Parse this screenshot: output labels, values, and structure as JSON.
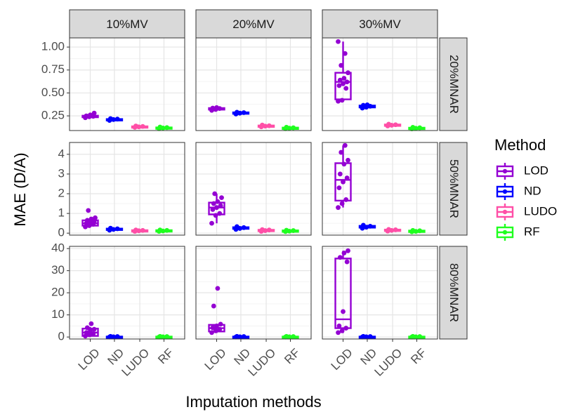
{
  "chart_data": {
    "type": "box",
    "xlabel": "Imputation methods",
    "ylabel": "MAE (D/A)",
    "categories": [
      "LOD",
      "ND",
      "LUDO",
      "RF"
    ],
    "col_facets": [
      "10%MV",
      "20%MV",
      "30%MV"
    ],
    "row_facets": [
      "20%MNAR",
      "50%MNAR",
      "80%MNAR"
    ],
    "legend": {
      "title": "Method",
      "position": "right",
      "entries": [
        {
          "label": "LOD",
          "color": "#9400D3"
        },
        {
          "label": "ND",
          "color": "#0000FF"
        },
        {
          "label": "LUDO",
          "color": "#FF4FA7"
        },
        {
          "label": "RF",
          "color": "#1FFF1F"
        }
      ]
    },
    "grid": true,
    "rows": [
      {
        "name": "20%MNAR",
        "ylim": [
          0.09,
          1.1
        ],
        "yticks": [
          0.25,
          0.5,
          0.75,
          1.0
        ],
        "ytick_labels": [
          "0.25",
          "0.50",
          "0.75",
          "1.00"
        ],
        "panels": [
          {
            "col": "10%MV",
            "boxes": [
              {
                "method": "LOD",
                "q1": 0.235,
                "median": 0.245,
                "q3": 0.252,
                "whisker_low": 0.228,
                "whisker_high": 0.262,
                "points": [
                  0.23,
                  0.24,
                  0.245,
                  0.25,
                  0.26,
                  0.28
                ]
              },
              {
                "method": "ND",
                "q1": 0.205,
                "median": 0.21,
                "q3": 0.215,
                "whisker_low": 0.2,
                "whisker_high": 0.22,
                "points": [
                  0.2,
                  0.21,
                  0.215,
                  0.22
                ]
              },
              {
                "method": "LUDO",
                "q1": 0.128,
                "median": 0.132,
                "q3": 0.136,
                "whisker_low": 0.124,
                "whisker_high": 0.14,
                "points": [
                  0.125,
                  0.13,
                  0.135,
                  0.14
                ]
              },
              {
                "method": "RF",
                "q1": 0.115,
                "median": 0.12,
                "q3": 0.124,
                "whisker_low": 0.11,
                "whisker_high": 0.128,
                "points": [
                  0.11,
                  0.118,
                  0.122,
                  0.128
                ]
              }
            ]
          },
          {
            "col": "20%MV",
            "boxes": [
              {
                "method": "LOD",
                "q1": 0.318,
                "median": 0.327,
                "q3": 0.335,
                "whisker_low": 0.31,
                "whisker_high": 0.342,
                "points": [
                  0.31,
                  0.32,
                  0.33,
                  0.335,
                  0.34
                ]
              },
              {
                "method": "ND",
                "q1": 0.275,
                "median": 0.282,
                "q3": 0.288,
                "whisker_low": 0.268,
                "whisker_high": 0.295,
                "points": [
                  0.27,
                  0.28,
                  0.285,
                  0.29
                ]
              },
              {
                "method": "LUDO",
                "q1": 0.136,
                "median": 0.14,
                "q3": 0.145,
                "whisker_low": 0.13,
                "whisker_high": 0.15,
                "points": [
                  0.13,
                  0.138,
                  0.142,
                  0.15
                ]
              },
              {
                "method": "RF",
                "q1": 0.115,
                "median": 0.118,
                "q3": 0.122,
                "whisker_low": 0.11,
                "whisker_high": 0.127,
                "points": [
                  0.11,
                  0.116,
                  0.12,
                  0.126
                ]
              }
            ]
          },
          {
            "col": "30%MV",
            "boxes": [
              {
                "method": "LOD",
                "q1": 0.43,
                "median": 0.62,
                "q3": 0.72,
                "whisker_low": 0.41,
                "whisker_high": 1.06,
                "points": [
                  0.41,
                  0.42,
                  0.55,
                  0.58,
                  0.6,
                  0.62,
                  0.64,
                  0.66,
                  0.72,
                  0.8,
                  0.93,
                  1.06
                ]
              },
              {
                "method": "ND",
                "q1": 0.342,
                "median": 0.352,
                "q3": 0.362,
                "whisker_low": 0.332,
                "whisker_high": 0.372,
                "points": [
                  0.335,
                  0.345,
                  0.355,
                  0.365,
                  0.37
                ]
              },
              {
                "method": "LUDO",
                "q1": 0.146,
                "median": 0.15,
                "q3": 0.156,
                "whisker_low": 0.14,
                "whisker_high": 0.162,
                "points": [
                  0.14,
                  0.148,
                  0.153,
                  0.16
                ]
              },
              {
                "method": "RF",
                "q1": 0.113,
                "median": 0.117,
                "q3": 0.121,
                "whisker_low": 0.108,
                "whisker_high": 0.126,
                "points": [
                  0.108,
                  0.115,
                  0.12,
                  0.125
                ]
              }
            ]
          }
        ]
      },
      {
        "name": "50%MNAR",
        "ylim": [
          -0.1,
          4.6
        ],
        "yticks": [
          0,
          1,
          2,
          3,
          4
        ],
        "ytick_labels": [
          "0",
          "1",
          "2",
          "3",
          "4"
        ],
        "panels": [
          {
            "col": "10%MV",
            "boxes": [
              {
                "method": "LOD",
                "q1": 0.38,
                "median": 0.5,
                "q3": 0.65,
                "whisker_low": 0.3,
                "whisker_high": 0.78,
                "points": [
                  0.32,
                  0.38,
                  0.45,
                  0.5,
                  0.55,
                  0.6,
                  0.65,
                  0.72,
                  0.78,
                  1.15
                ]
              },
              {
                "method": "ND",
                "q1": 0.17,
                "median": 0.2,
                "q3": 0.23,
                "whisker_low": 0.14,
                "whisker_high": 0.26,
                "points": [
                  0.15,
                  0.19,
                  0.22,
                  0.25
                ]
              },
              {
                "method": "LUDO",
                "q1": 0.1,
                "median": 0.12,
                "q3": 0.15,
                "whisker_low": 0.08,
                "whisker_high": 0.17,
                "points": [
                  0.09,
                  0.12,
                  0.14,
                  0.16
                ]
              },
              {
                "method": "RF",
                "q1": 0.1,
                "median": 0.12,
                "q3": 0.15,
                "whisker_low": 0.08,
                "whisker_high": 0.17,
                "points": [
                  0.09,
                  0.11,
                  0.14,
                  0.16
                ]
              }
            ]
          },
          {
            "col": "20%MV",
            "boxes": [
              {
                "method": "LOD",
                "q1": 0.95,
                "median": 1.3,
                "q3": 1.55,
                "whisker_low": 0.5,
                "whisker_high": 2.0,
                "points": [
                  0.5,
                  0.9,
                  1.0,
                  1.2,
                  1.3,
                  1.4,
                  1.5,
                  1.6,
                  1.8,
                  2.0
                ]
              },
              {
                "method": "ND",
                "q1": 0.22,
                "median": 0.26,
                "q3": 0.3,
                "whisker_low": 0.18,
                "whisker_high": 0.34,
                "points": [
                  0.19,
                  0.24,
                  0.28,
                  0.33
                ]
              },
              {
                "method": "LUDO",
                "q1": 0.11,
                "median": 0.14,
                "q3": 0.17,
                "whisker_low": 0.08,
                "whisker_high": 0.19,
                "points": [
                  0.09,
                  0.13,
                  0.16,
                  0.18
                ]
              },
              {
                "method": "RF",
                "q1": 0.09,
                "median": 0.11,
                "q3": 0.14,
                "whisker_low": 0.07,
                "whisker_high": 0.16,
                "points": [
                  0.08,
                  0.1,
                  0.13,
                  0.15
                ]
              }
            ]
          },
          {
            "col": "30%MV",
            "boxes": [
              {
                "method": "LOD",
                "q1": 1.65,
                "median": 2.7,
                "q3": 3.55,
                "whisker_low": 1.3,
                "whisker_high": 4.45,
                "points": [
                  1.3,
                  1.5,
                  1.7,
                  2.3,
                  2.6,
                  2.8,
                  3.0,
                  3.5,
                  3.7,
                  4.1,
                  4.45
                ]
              },
              {
                "method": "ND",
                "q1": 0.28,
                "median": 0.32,
                "q3": 0.37,
                "whisker_low": 0.24,
                "whisker_high": 0.42,
                "points": [
                  0.25,
                  0.3,
                  0.35,
                  0.4
                ]
              },
              {
                "method": "LUDO",
                "q1": 0.12,
                "median": 0.15,
                "q3": 0.18,
                "whisker_low": 0.09,
                "whisker_high": 0.2,
                "points": [
                  0.1,
                  0.14,
                  0.17,
                  0.19
                ]
              },
              {
                "method": "RF",
                "q1": 0.08,
                "median": 0.1,
                "q3": 0.13,
                "whisker_low": 0.06,
                "whisker_high": 0.15,
                "points": [
                  0.07,
                  0.09,
                  0.12,
                  0.14
                ]
              }
            ]
          }
        ]
      },
      {
        "name": "80%MNAR",
        "ylim": [
          -0.9,
          41
        ],
        "yticks": [
          0,
          10,
          20,
          30,
          40
        ],
        "ytick_labels": [
          "0",
          "10",
          "20",
          "30",
          "40"
        ],
        "panels": [
          {
            "col": "10%MV",
            "boxes": [
              {
                "method": "LOD",
                "q1": 0.5,
                "median": 2.0,
                "q3": 3.8,
                "whisker_low": 0.0,
                "whisker_high": 4.5,
                "points": [
                  0.4,
                  1.0,
                  1.5,
                  2.0,
                  2.8,
                  3.5,
                  4.2,
                  6.0
                ]
              },
              {
                "method": "ND",
                "q1": 0.0,
                "median": 0.1,
                "q3": 0.2,
                "whisker_low": 0.0,
                "whisker_high": 0.3,
                "points": [
                  0.0,
                  0.1,
                  0.2,
                  0.3
                ]
              },
              {
                "method": "RF",
                "q1": 0.0,
                "median": 0.1,
                "q3": 0.2,
                "whisker_low": 0.0,
                "whisker_high": 0.3,
                "points": [
                  0.0,
                  0.1,
                  0.2,
                  0.3
                ]
              }
            ]
          },
          {
            "col": "20%MV",
            "boxes": [
              {
                "method": "LOD",
                "q1": 2.5,
                "median": 4.0,
                "q3": 5.5,
                "whisker_low": 1.8,
                "whisker_high": 6.0,
                "points": [
                  2.0,
                  2.8,
                  3.5,
                  4.2,
                  5.0,
                  5.8,
                  14.0,
                  22.0
                ]
              },
              {
                "method": "ND",
                "q1": 0.0,
                "median": 0.1,
                "q3": 0.2,
                "whisker_low": 0.0,
                "whisker_high": 0.3,
                "points": [
                  0.0,
                  0.1,
                  0.2,
                  0.3
                ]
              },
              {
                "method": "RF",
                "q1": 0.0,
                "median": 0.1,
                "q3": 0.2,
                "whisker_low": 0.0,
                "whisker_high": 0.3,
                "points": [
                  0.0,
                  0.1,
                  0.2,
                  0.3
                ]
              }
            ]
          },
          {
            "col": "30%MV",
            "boxes": [
              {
                "method": "LOD",
                "q1": 4.0,
                "median": 8.0,
                "q3": 35.5,
                "whisker_low": 1.8,
                "whisker_high": 39.0,
                "points": [
                  2.0,
                  2.8,
                  4.0,
                  5.0,
                  11.5,
                  34.0,
                  36.0,
                  38.0,
                  39.0
                ]
              },
              {
                "method": "ND",
                "q1": 0.0,
                "median": 0.1,
                "q3": 0.2,
                "whisker_low": 0.0,
                "whisker_high": 0.3,
                "points": [
                  0.0,
                  0.1,
                  0.2,
                  0.3
                ]
              },
              {
                "method": "RF",
                "q1": 0.0,
                "median": 0.1,
                "q3": 0.2,
                "whisker_low": 0.0,
                "whisker_high": 0.3,
                "points": [
                  0.0,
                  0.1,
                  0.2,
                  0.3
                ]
              }
            ]
          }
        ]
      }
    ]
  }
}
